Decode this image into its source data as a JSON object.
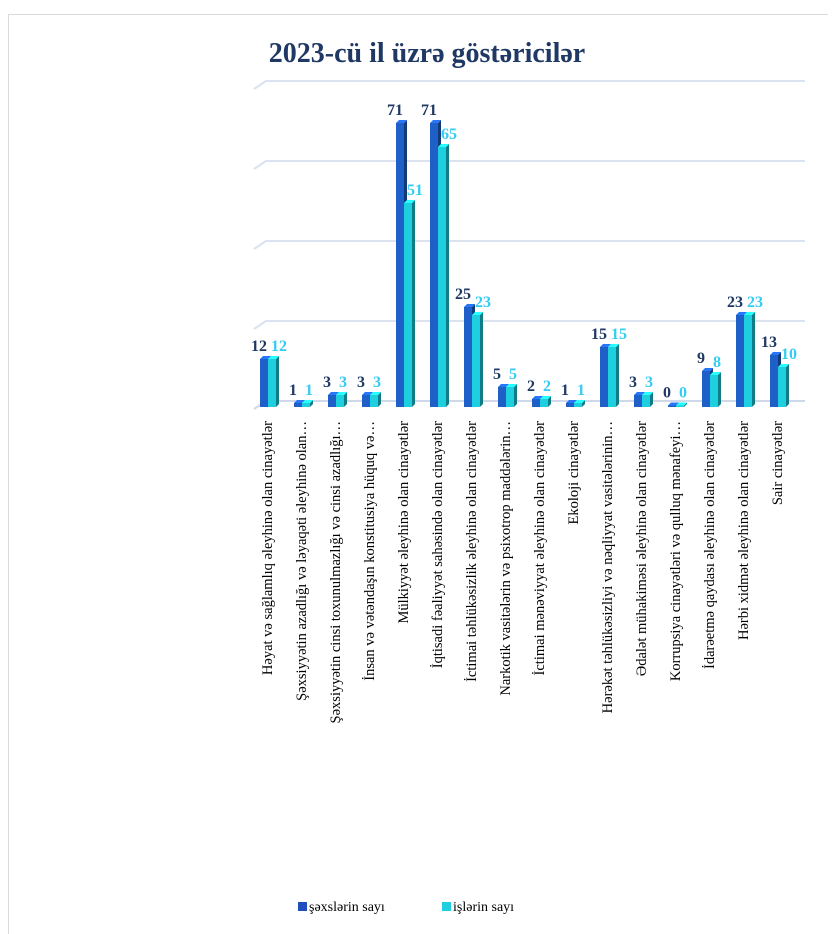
{
  "chart_data": {
    "type": "bar",
    "title": "2023-cü il üzrə göstəricilər",
    "categories": [
      "Həyat və sağlamlıq əleyhinə olan cinayətlər",
      "Şəxsiyyətin azadlığı və ləyaqəti əleyhinə olan…",
      "Şəxsiyyətin cinsi toxunulmazlığı və cinsi azadlığı…",
      "İnsan və vətəndaşın konstitusiya hüquq və…",
      "Mülkiyyət əleyhinə olan cinayətlər",
      "İqtisadi fəaliyyət sahəsində olan cinayətlər",
      "İctimai təhlükəsizlik əleyhinə olan cinayətlər",
      "Narkotik vasitələrin və psixotrop maddələrin…",
      "İctimai mənəviyyat əleyhinə olan cinayətlər",
      "Ekoloji cinayətlər",
      "Hərəkət təhlükəsizliyi və nəqliyyat vasitələrinin…",
      "Ədalət mühakiməsi əleyhinə olan cinayətlər",
      "Korrupsiya cinayətləri və qulluq mənafeyi…",
      "İdarəetmə qaydası əleyhinə olan cinayətlər",
      "Hərbi xidmət əleyhinə olan cinayətlər",
      "Sair cinayətlər"
    ],
    "series": [
      {
        "name": "şəxslərin sayı",
        "color": "#1f5fc8",
        "values": [
          12,
          1,
          3,
          3,
          71,
          71,
          25,
          5,
          2,
          1,
          15,
          3,
          0,
          9,
          23,
          13
        ]
      },
      {
        "name": "işlərin sayı",
        "color": "#1ecfe0",
        "values": [
          12,
          1,
          3,
          3,
          51,
          65,
          23,
          5,
          2,
          1,
          15,
          3,
          0,
          8,
          23,
          10
        ]
      }
    ],
    "label_colors": [
      "#1f3864",
      "#33ccf2"
    ],
    "ylim": [
      0,
      80
    ],
    "gridlines": true,
    "legend_position": "bottom"
  }
}
